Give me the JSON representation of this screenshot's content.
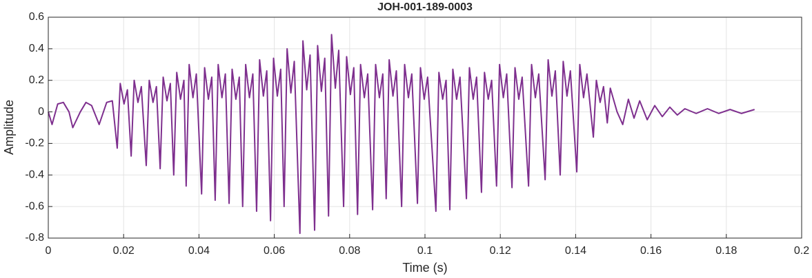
{
  "chart_data": {
    "type": "line",
    "title": "JOH-001-189-0003",
    "xlabel": "Time (s)",
    "ylabel": "Amplitude",
    "color": "#7e2f8e",
    "grid": true,
    "xlim": [
      0,
      0.2
    ],
    "xticks": [
      0,
      0.02,
      0.04,
      0.06,
      0.08,
      0.1,
      0.12,
      0.14,
      0.16,
      0.18,
      0.2
    ],
    "ylim": [
      -0.8,
      0.6
    ],
    "yticks": [
      0.6,
      0.4,
      0.2,
      0,
      -0.2,
      -0.4,
      -0.6,
      -0.8
    ],
    "x": [
      0,
      0.001,
      0.0025,
      0.004,
      0.0055,
      0.0065,
      0.0085,
      0.01,
      0.0115,
      0.0135,
      0.0155,
      0.017,
      0.0183,
      0.0191,
      0.0201,
      0.021,
      0.022,
      0.0228,
      0.0238,
      0.0247,
      0.026,
      0.0268,
      0.0278,
      0.0287,
      0.0297,
      0.0305,
      0.0315,
      0.0324,
      0.0333,
      0.0341,
      0.0351,
      0.036,
      0.0366,
      0.0374,
      0.0384,
      0.0393,
      0.0407,
      0.0415,
      0.0425,
      0.0434,
      0.0443,
      0.0451,
      0.0461,
      0.047,
      0.048,
      0.0488,
      0.0498,
      0.0507,
      0.0516,
      0.0524,
      0.0534,
      0.0543,
      0.0553,
      0.0561,
      0.0571,
      0.058,
      0.059,
      0.0598,
      0.0608,
      0.0617,
      0.0626,
      0.0634,
      0.0644,
      0.0653,
      0.0668,
      0.0676,
      0.0686,
      0.0695,
      0.0707,
      0.0715,
      0.0725,
      0.0734,
      0.0744,
      0.0752,
      0.0762,
      0.0771,
      0.0784,
      0.0792,
      0.0802,
      0.0811,
      0.0821,
      0.0829,
      0.0839,
      0.0848,
      0.0861,
      0.0869,
      0.0879,
      0.0888,
      0.0897,
      0.0905,
      0.0915,
      0.0924,
      0.0938,
      0.0946,
      0.0956,
      0.0965,
      0.098,
      0.0988,
      0.0998,
      0.1007,
      0.1029,
      0.1037,
      0.1047,
      0.1056,
      0.1066,
      0.1074,
      0.1084,
      0.1093,
      0.111,
      0.1118,
      0.1128,
      0.1137,
      0.115,
      0.1158,
      0.1168,
      0.1177,
      0.119,
      0.1198,
      0.1208,
      0.1217,
      0.1231,
      0.1239,
      0.1249,
      0.1258,
      0.1275,
      0.1283,
      0.1293,
      0.1302,
      0.1319,
      0.1327,
      0.1337,
      0.1346,
      0.1359,
      0.1367,
      0.1377,
      0.1386,
      0.1403,
      0.1411,
      0.1421,
      0.143,
      0.1447,
      0.1455,
      0.1465,
      0.1474,
      0.1484,
      0.1492,
      0.151,
      0.1525,
      0.154,
      0.1555,
      0.157,
      0.159,
      0.161,
      0.163,
      0.165,
      0.167,
      0.169,
      0.172,
      0.175,
      0.178,
      0.181,
      0.184,
      0.1875
    ],
    "y": [
      0,
      -0.08,
      0.05,
      0.06,
      0,
      -0.1,
      0,
      0.06,
      0.04,
      -0.08,
      0.06,
      0.07,
      -0.23,
      0.18,
      0.05,
      0.14,
      -0.28,
      0.2,
      0.06,
      0.16,
      -0.34,
      0.2,
      0.06,
      0.16,
      -0.36,
      0.22,
      0.07,
      0.18,
      -0.4,
      0.25,
      0.08,
      0.2,
      -0.47,
      0.3,
      0.09,
      0.24,
      -0.52,
      0.28,
      0.08,
      0.22,
      -0.56,
      0.3,
      0.09,
      0.24,
      -0.58,
      0.27,
      0.08,
      0.22,
      -0.6,
      0.3,
      0.09,
      0.24,
      -0.63,
      0.33,
      0.1,
      0.26,
      -0.69,
      0.34,
      0.1,
      0.27,
      -0.6,
      0.4,
      0.12,
      0.32,
      -0.77,
      0.45,
      0.14,
      0.36,
      -0.75,
      0.42,
      0.13,
      0.34,
      -0.66,
      0.49,
      0.15,
      0.39,
      -0.6,
      0.35,
      0.11,
      0.28,
      -0.65,
      0.3,
      0.09,
      0.24,
      -0.62,
      0.3,
      0.09,
      0.24,
      -0.55,
      0.33,
      0.1,
      0.26,
      -0.6,
      0.3,
      0.09,
      0.24,
      -0.58,
      0.28,
      0.08,
      0.22,
      -0.63,
      0.25,
      0.08,
      0.2,
      -0.62,
      0.27,
      0.08,
      0.22,
      -0.55,
      0.28,
      0.08,
      0.22,
      -0.51,
      0.25,
      0.08,
      0.2,
      -0.47,
      0.3,
      0.09,
      0.24,
      -0.48,
      0.28,
      0.08,
      0.22,
      -0.47,
      0.3,
      0.09,
      0.24,
      -0.43,
      0.33,
      0.1,
      0.26,
      -0.4,
      0.32,
      0.1,
      0.26,
      -0.38,
      0.3,
      0.09,
      0.24,
      -0.16,
      0.2,
      0.06,
      0.16,
      -0.07,
      0.15,
      0,
      -0.08,
      0.08,
      -0.04,
      0.07,
      -0.05,
      0.04,
      -0.03,
      0.03,
      -0.02,
      0.02,
      -0.01,
      0.02,
      -0.01,
      0.015,
      -0.01,
      0.015
    ]
  }
}
